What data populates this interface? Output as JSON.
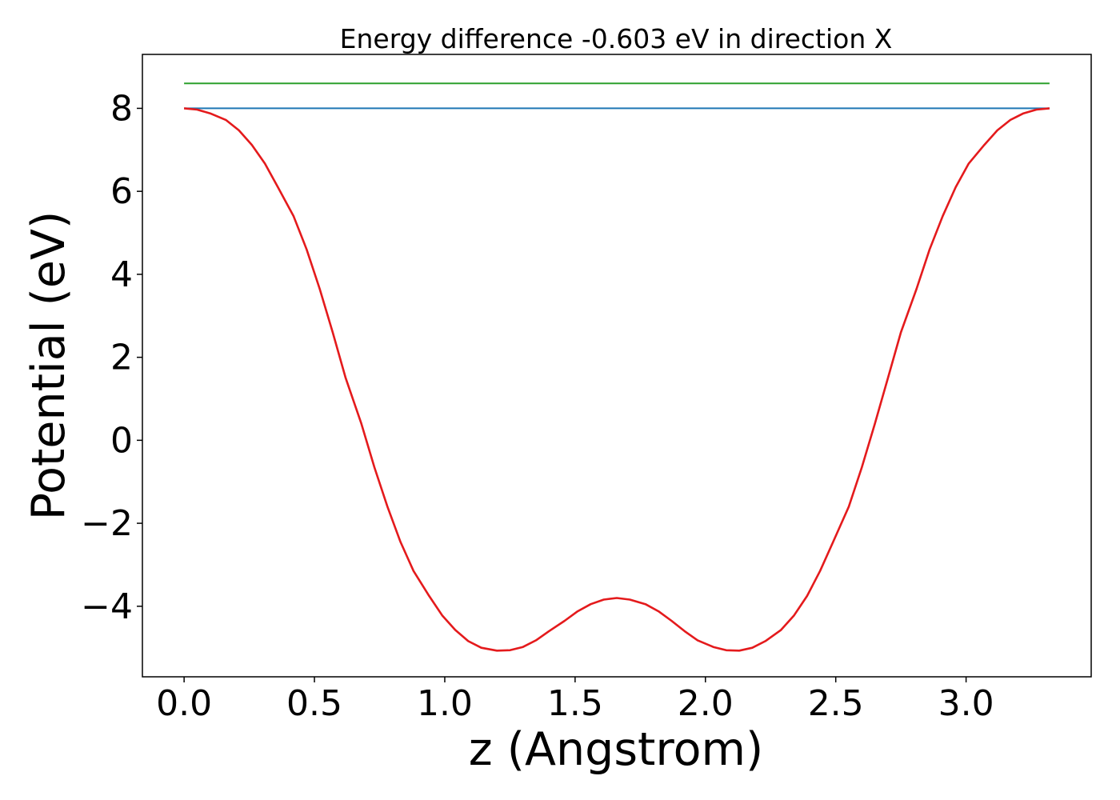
{
  "chart_data": {
    "type": "line",
    "title": "Energy difference -0.603 eV in direction X",
    "xlabel": "z (Angstrom)",
    "ylabel": "Potential (eV)",
    "xlim": [
      -0.16,
      3.48
    ],
    "ylim": [
      -5.7,
      9.3
    ],
    "x_ticks": [
      {
        "value": 0.0,
        "label": "0.0"
      },
      {
        "value": 0.5,
        "label": "0.5"
      },
      {
        "value": 1.0,
        "label": "1.0"
      },
      {
        "value": 1.5,
        "label": "1.5"
      },
      {
        "value": 2.0,
        "label": "2.0"
      },
      {
        "value": 2.5,
        "label": "2.5"
      },
      {
        "value": 3.0,
        "label": "3.0"
      }
    ],
    "y_ticks": [
      {
        "value": -4,
        "label": "−4"
      },
      {
        "value": -2,
        "label": "−2"
      },
      {
        "value": 0,
        "label": "0"
      },
      {
        "value": 2,
        "label": "2"
      },
      {
        "value": 4,
        "label": "4"
      },
      {
        "value": 6,
        "label": "6"
      },
      {
        "value": 8,
        "label": "8"
      }
    ],
    "grid": false,
    "legend": "none",
    "series": [
      {
        "color": "#2ca02c",
        "x": [
          0.0,
          3.32
        ],
        "y": [
          8.6,
          8.6
        ]
      },
      {
        "color": "#1f77b4",
        "x": [
          0.0,
          3.32
        ],
        "y": [
          8.0,
          8.0
        ]
      },
      {
        "color": "#e41a1c",
        "x": [
          0.0,
          0.05,
          0.1,
          0.16,
          0.21,
          0.26,
          0.31,
          0.36,
          0.42,
          0.47,
          0.52,
          0.57,
          0.62,
          0.68,
          0.73,
          0.78,
          0.83,
          0.88,
          0.94,
          0.99,
          1.04,
          1.09,
          1.14,
          1.2,
          1.25,
          1.3,
          1.35,
          1.4,
          1.46,
          1.51,
          1.56,
          1.61,
          1.66,
          1.71,
          1.77,
          1.82,
          1.87,
          1.92,
          1.97,
          2.03,
          2.08,
          2.13,
          2.18,
          2.23,
          2.29,
          2.34,
          2.39,
          2.44,
          2.49,
          2.55,
          2.6,
          2.65,
          2.7,
          2.75,
          2.81,
          2.86,
          2.91,
          2.96,
          3.01,
          3.07,
          3.12,
          3.17,
          3.22,
          3.27,
          3.32
        ],
        "y": [
          8.0,
          7.97,
          7.88,
          7.72,
          7.47,
          7.12,
          6.67,
          6.1,
          5.4,
          4.6,
          3.65,
          2.6,
          1.5,
          0.4,
          -0.65,
          -1.6,
          -2.45,
          -3.15,
          -3.75,
          -4.22,
          -4.57,
          -4.84,
          -5.0,
          -5.07,
          -5.06,
          -4.98,
          -4.82,
          -4.6,
          -4.35,
          -4.12,
          -3.95,
          -3.84,
          -3.8,
          -3.84,
          -3.95,
          -4.12,
          -4.35,
          -4.6,
          -4.82,
          -4.98,
          -5.06,
          -5.07,
          -5.0,
          -4.84,
          -4.57,
          -4.22,
          -3.75,
          -3.15,
          -2.45,
          -1.6,
          -0.65,
          0.4,
          1.5,
          2.6,
          3.65,
          4.6,
          5.4,
          6.1,
          6.67,
          7.12,
          7.47,
          7.72,
          7.88,
          7.97,
          8.0
        ]
      }
    ]
  }
}
